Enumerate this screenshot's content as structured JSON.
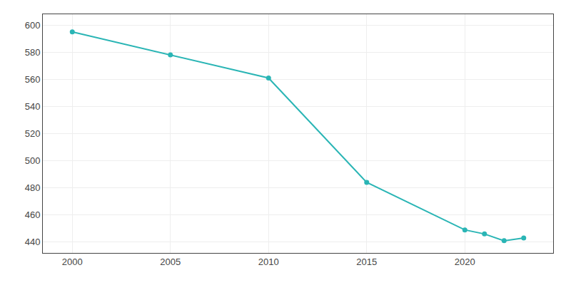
{
  "chart_data": {
    "type": "line",
    "x": [
      2000,
      2005,
      2010,
      2015,
      2020,
      2021,
      2022,
      2023
    ],
    "values": [
      595,
      578,
      561,
      484,
      449,
      446,
      441,
      443
    ],
    "color": "#2ab5b5",
    "marker": "circle",
    "xlim": [
      1998.5,
      2024.5
    ],
    "xticks": [
      2000,
      2005,
      2010,
      2015,
      2020
    ],
    "ylim": [
      432,
      608
    ],
    "yticks": [
      440,
      460,
      480,
      500,
      520,
      540,
      560,
      580,
      600
    ],
    "grid": true
  }
}
